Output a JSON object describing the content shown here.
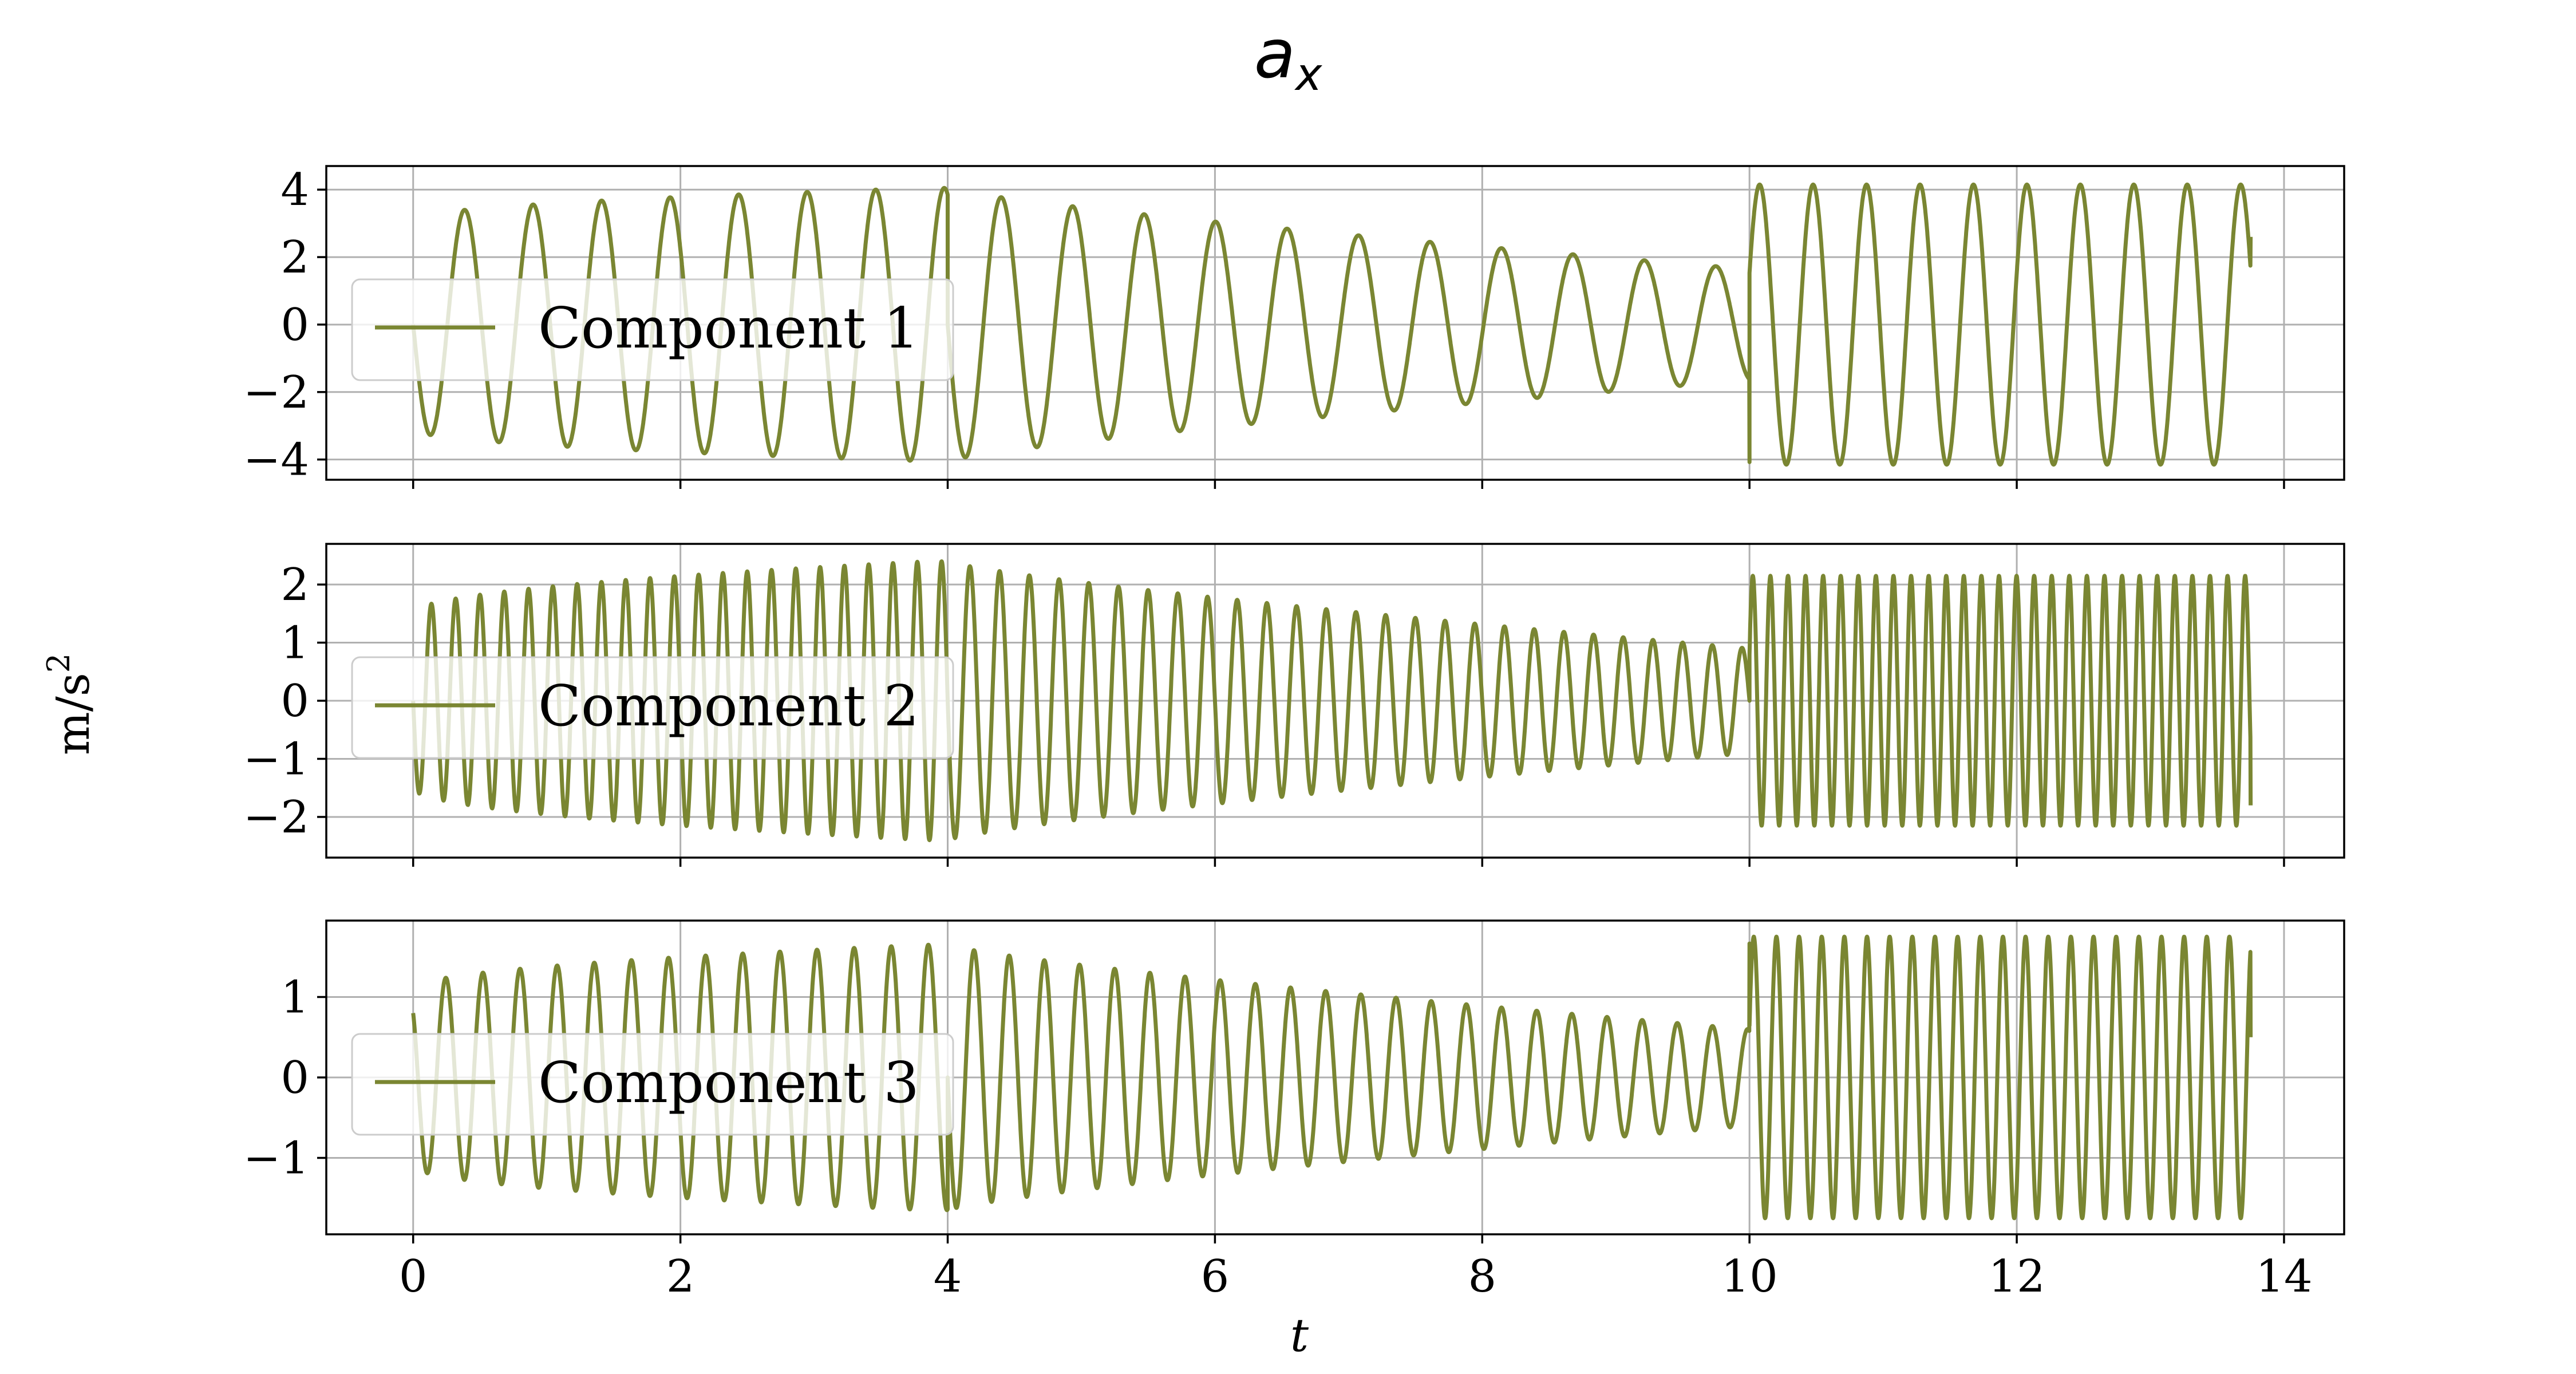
{
  "chart_data": {
    "type": "line",
    "title_base": "a",
    "title_sub": "x",
    "xlabel": "t",
    "ylabel_base": "m/s",
    "ylabel_sup": "2",
    "xlim": [
      -0.65,
      14.45
    ],
    "xticks": [
      0,
      2,
      4,
      6,
      8,
      10,
      12,
      14
    ],
    "grid": true,
    "legend_position": "center-left",
    "color": "#7a8632",
    "segment_breaks": [
      4,
      10
    ],
    "segment_shape": [
      "growing",
      "decaying",
      "constant"
    ],
    "t_end": 13.75,
    "panels": [
      {
        "name": "Component 1",
        "ylim": [
          -4.6,
          4.7
        ],
        "yticks": [
          -4,
          -2,
          0,
          2,
          4
        ],
        "peak_amplitude": [
          3.1,
          4.05,
          1.65,
          4.15
        ],
        "frequency_hz": [
          1.95,
          1.87,
          2.5
        ],
        "start_value": 0.0,
        "end_value": 2.6
      },
      {
        "name": "Component 2",
        "ylim": [
          -2.7,
          2.7
        ],
        "yticks": [
          -2,
          -1,
          0,
          1,
          2
        ],
        "peak_amplitude": [
          1.5,
          2.4,
          0.9,
          2.15
        ],
        "frequency_hz": [
          5.5,
          4.5,
          7.6
        ],
        "start_value": 0.0,
        "end_value": -1.8
      },
      {
        "name": "Component 3",
        "ylim": [
          -1.95,
          1.95
        ],
        "yticks": [
          -1,
          0,
          1
        ],
        "peak_amplitude": [
          1.1,
          1.65,
          0.6,
          1.75
        ],
        "frequency_hz": [
          3.6,
          3.8,
          5.9
        ],
        "start_value": 0.8,
        "end_value": 0.5
      }
    ]
  }
}
